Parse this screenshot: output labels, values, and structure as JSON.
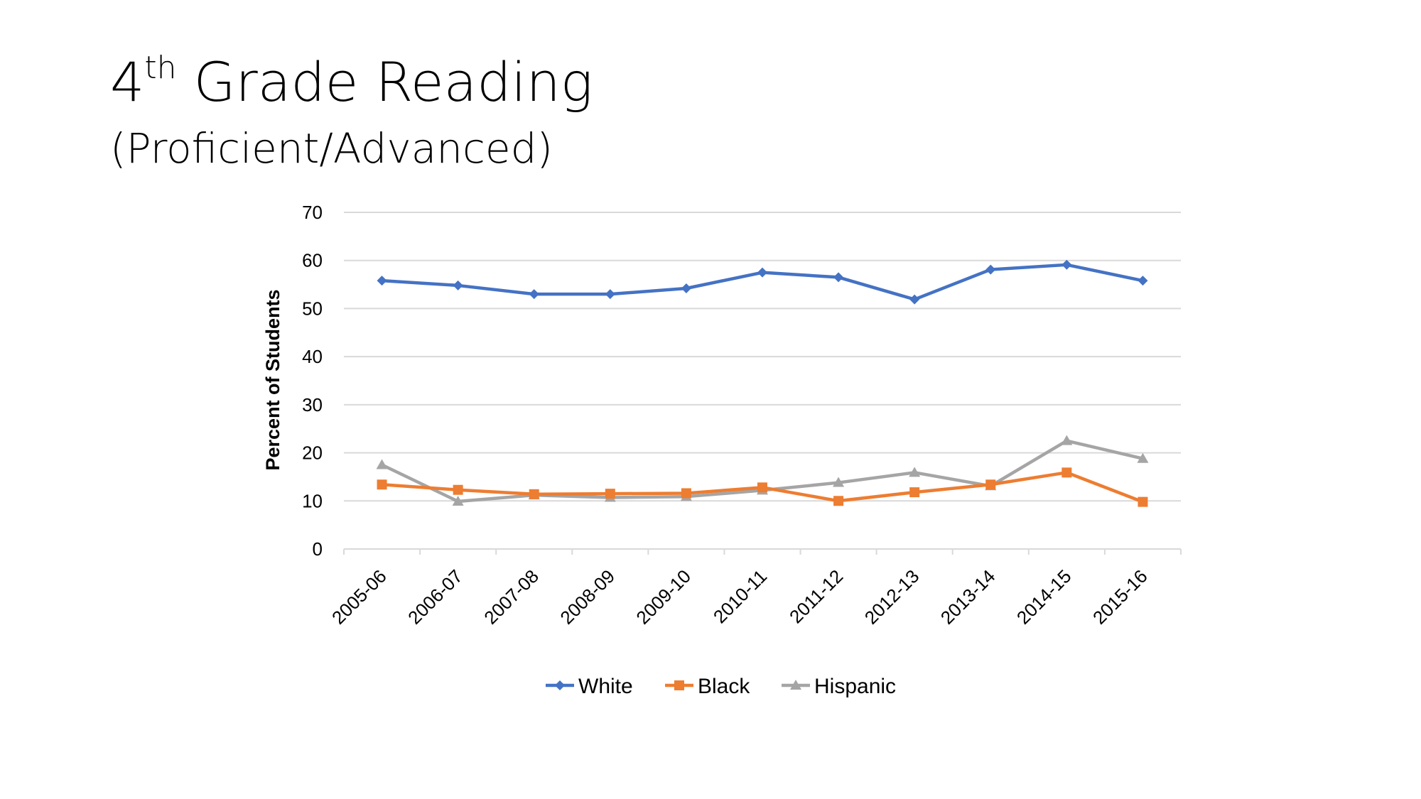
{
  "slide": {
    "title_main": "4",
    "title_sup": "th",
    "title_rest": " Grade Reading",
    "subtitle": "(Proficient/Advanced)"
  },
  "chart_data": {
    "type": "line",
    "title": "",
    "xlabel": "",
    "ylabel": "Percent of Students",
    "ylim": [
      0,
      70
    ],
    "yticks": [
      0,
      10,
      20,
      30,
      40,
      50,
      60,
      70
    ],
    "grid": true,
    "legend_position": "bottom",
    "categories": [
      "2005-06",
      "2006-07",
      "2007-08",
      "2008-09",
      "2009-10",
      "2010-11",
      "2011-12",
      "2012-13",
      "2013-14",
      "2014-15",
      "2015-16"
    ],
    "series": [
      {
        "name": "White",
        "color": "#4472C4",
        "marker": "diamond",
        "values": [
          55.8,
          54.8,
          53.0,
          53.0,
          54.2,
          57.5,
          56.5,
          51.9,
          58.1,
          59.1,
          55.8
        ]
      },
      {
        "name": "Black",
        "color": "#ED7D31",
        "marker": "square",
        "values": [
          13.4,
          12.3,
          11.4,
          11.5,
          11.6,
          12.8,
          10.0,
          11.8,
          13.4,
          15.9,
          9.8
        ]
      },
      {
        "name": "Hispanic",
        "color": "#A5A5A5",
        "marker": "triangle",
        "values": [
          17.5,
          9.9,
          11.2,
          10.7,
          10.9,
          12.2,
          13.8,
          15.9,
          13.1,
          22.5,
          18.8
        ]
      }
    ]
  }
}
